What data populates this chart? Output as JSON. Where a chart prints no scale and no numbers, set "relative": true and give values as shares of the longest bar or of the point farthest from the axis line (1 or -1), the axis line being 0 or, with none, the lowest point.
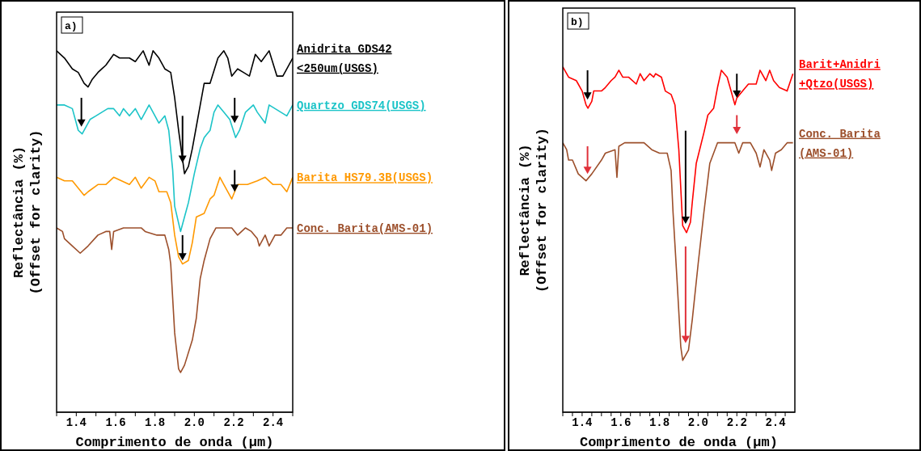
{
  "chart_data": [
    {
      "type": "line",
      "annotations": [
        "a)"
      ],
      "xlabel": "Comprimento de onda (µm)",
      "ylabel": "Reflectância (%) (Offset for clarity)",
      "relative": true,
      "xlim": [
        1.3,
        2.5
      ],
      "xticks": [
        {
          "value": 1.3,
          "label": null
        },
        1.4,
        {
          "value": 1.5,
          "label": null
        },
        1.6,
        {
          "value": 1.7,
          "label": null
        },
        1.8,
        {
          "value": 1.9,
          "label": null
        },
        {
          "value": 2.0,
          "label": "2.0"
        },
        {
          "value": 2.1,
          "label": null
        },
        2.2,
        {
          "value": 2.3,
          "label": null
        },
        2.4,
        {
          "value": 2.5,
          "label": null
        }
      ],
      "series": [
        {
          "name": "Anidrita GDS42 <250um(USGS)",
          "color": "#000000",
          "x": [
            1.3,
            1.34,
            1.38,
            1.41,
            1.44,
            1.46,
            1.48,
            1.51,
            1.53,
            1.55,
            1.59,
            1.62,
            1.64,
            1.67,
            1.7,
            1.74,
            1.77,
            1.79,
            1.82,
            1.85,
            1.88,
            1.9,
            1.92,
            1.95,
            1.97,
            1.99,
            2.01,
            2.03,
            2.05,
            2.08,
            2.12,
            2.15,
            2.17,
            2.19,
            2.22,
            2.25,
            2.28,
            2.31,
            2.34,
            2.38,
            2.42,
            2.45,
            2.5
          ],
          "values": [
            1.0,
            0.98,
            0.95,
            0.94,
            0.91,
            0.9,
            0.92,
            0.94,
            0.95,
            0.96,
            0.99,
            0.98,
            0.98,
            0.98,
            0.97,
            1.0,
            0.96,
            1.0,
            0.98,
            0.95,
            0.94,
            0.87,
            0.78,
            0.66,
            0.68,
            0.73,
            0.79,
            0.85,
            0.91,
            0.91,
            0.98,
            1.0,
            0.98,
            0.93,
            0.95,
            0.94,
            0.93,
            0.99,
            0.97,
            1.0,
            0.93,
            0.93,
            0.98
          ]
        },
        {
          "name": "Quartzo GDS74(USGS)",
          "color": "#1cc4c8",
          "x": [
            1.3,
            1.34,
            1.38,
            1.41,
            1.43,
            1.47,
            1.5,
            1.53,
            1.56,
            1.59,
            1.62,
            1.64,
            1.67,
            1.7,
            1.73,
            1.77,
            1.79,
            1.82,
            1.85,
            1.87,
            1.89,
            1.9,
            1.93,
            1.95,
            1.97,
            2.0,
            2.03,
            2.05,
            2.08,
            2.1,
            2.12,
            2.15,
            2.18,
            2.21,
            2.23,
            2.26,
            2.3,
            2.32,
            2.36,
            2.38,
            2.41,
            2.47,
            2.5
          ],
          "values": [
            0.85,
            0.85,
            0.84,
            0.78,
            0.77,
            0.81,
            0.82,
            0.83,
            0.84,
            0.84,
            0.82,
            0.84,
            0.82,
            0.84,
            0.81,
            0.85,
            0.83,
            0.8,
            0.82,
            0.78,
            0.67,
            0.57,
            0.5,
            0.54,
            0.58,
            0.66,
            0.73,
            0.76,
            0.78,
            0.83,
            0.85,
            0.83,
            0.81,
            0.76,
            0.78,
            0.83,
            0.85,
            0.83,
            0.8,
            0.85,
            0.84,
            0.82,
            0.85
          ]
        },
        {
          "name": "Barita HS79.3B(USGS)",
          "color": "#ff9900",
          "x": [
            1.3,
            1.34,
            1.38,
            1.41,
            1.44,
            1.46,
            1.51,
            1.55,
            1.59,
            1.63,
            1.67,
            1.7,
            1.73,
            1.77,
            1.8,
            1.82,
            1.86,
            1.88,
            1.9,
            1.92,
            1.94,
            1.97,
            1.99,
            2.01,
            2.05,
            2.08,
            2.1,
            2.13,
            2.15,
            2.19,
            2.22,
            2.27,
            2.32,
            2.36,
            2.4,
            2.44,
            2.47,
            2.5
          ],
          "values": [
            0.65,
            0.64,
            0.64,
            0.62,
            0.6,
            0.61,
            0.63,
            0.63,
            0.65,
            0.64,
            0.63,
            0.65,
            0.62,
            0.65,
            0.64,
            0.61,
            0.61,
            0.58,
            0.49,
            0.43,
            0.41,
            0.42,
            0.47,
            0.54,
            0.55,
            0.59,
            0.6,
            0.65,
            0.63,
            0.59,
            0.63,
            0.63,
            0.64,
            0.65,
            0.63,
            0.63,
            0.61,
            0.65
          ]
        },
        {
          "name": "Conc. Barita(AMS-01)",
          "color": "#9c4f2b",
          "x": [
            1.3,
            1.33,
            1.34,
            1.38,
            1.42,
            1.46,
            1.51,
            1.55,
            1.57,
            1.58,
            1.59,
            1.64,
            1.67,
            1.73,
            1.75,
            1.81,
            1.85,
            1.87,
            1.88,
            1.9,
            1.92,
            1.93,
            1.95,
            1.99,
            2.01,
            2.03,
            2.05,
            2.08,
            2.11,
            2.15,
            2.19,
            2.22,
            2.26,
            2.29,
            2.32,
            2.33,
            2.36,
            2.38,
            2.41,
            2.44,
            2.47,
            2.5
          ],
          "values": [
            0.51,
            0.5,
            0.48,
            0.46,
            0.44,
            0.46,
            0.49,
            0.5,
            0.5,
            0.45,
            0.5,
            0.51,
            0.51,
            0.51,
            0.5,
            0.49,
            0.49,
            0.45,
            0.41,
            0.22,
            0.12,
            0.11,
            0.13,
            0.2,
            0.26,
            0.37,
            0.42,
            0.48,
            0.51,
            0.51,
            0.51,
            0.49,
            0.51,
            0.5,
            0.48,
            0.46,
            0.49,
            0.46,
            0.49,
            0.49,
            0.51,
            0.51
          ]
        }
      ]
    },
    {
      "type": "line",
      "annotations": [
        "b)"
      ],
      "xlabel": "Comprimento de onda (µm)",
      "ylabel": "Reflectância (%) (Offset for clarity)",
      "relative": true,
      "xlim": [
        1.3,
        2.5
      ],
      "xticks": [
        {
          "value": 1.3,
          "label": null
        },
        {
          "value": 1.35,
          "label": null
        },
        1.4,
        {
          "value": 1.45,
          "label": null
        },
        {
          "value": 1.5,
          "label": null
        },
        {
          "value": 1.55,
          "label": null
        },
        1.6,
        {
          "value": 1.65,
          "label": null
        },
        {
          "value": 1.7,
          "label": null
        },
        {
          "value": 1.75,
          "label": null
        },
        1.8,
        {
          "value": 1.85,
          "label": null
        },
        {
          "value": 1.9,
          "label": null
        },
        {
          "value": 1.95,
          "label": null
        },
        {
          "value": 2.0,
          "label": "2.0"
        },
        {
          "value": 2.05,
          "label": null
        },
        {
          "value": 2.1,
          "label": null
        },
        {
          "value": 2.15,
          "label": null
        },
        2.2,
        {
          "value": 2.25,
          "label": null
        },
        {
          "value": 2.3,
          "label": null
        },
        {
          "value": 2.35,
          "label": null
        },
        2.4,
        {
          "value": 2.45,
          "label": null
        }
      ],
      "series": [
        {
          "name": "Barit+Anidri +Qtzo(USGS)",
          "color": "#ff0000",
          "x": [
            1.3,
            1.33,
            1.37,
            1.4,
            1.42,
            1.43,
            1.45,
            1.46,
            1.5,
            1.52,
            1.55,
            1.57,
            1.59,
            1.61,
            1.64,
            1.68,
            1.7,
            1.72,
            1.75,
            1.77,
            1.78,
            1.81,
            1.83,
            1.86,
            1.88,
            1.9,
            1.92,
            1.94,
            1.96,
            1.97,
            1.99,
            2.03,
            2.05,
            2.08,
            2.1,
            2.12,
            2.15,
            2.17,
            2.19,
            2.2,
            2.23,
            2.26,
            2.3,
            2.32,
            2.35,
            2.37,
            2.39,
            2.42,
            2.46,
            2.49
          ],
          "values": [
            1.0,
            0.97,
            0.96,
            0.93,
            0.89,
            0.88,
            0.9,
            0.93,
            0.93,
            0.94,
            0.96,
            0.97,
            0.99,
            0.97,
            0.97,
            0.95,
            0.98,
            0.96,
            0.98,
            0.97,
            0.98,
            0.97,
            0.93,
            0.92,
            0.89,
            0.76,
            0.54,
            0.52,
            0.55,
            0.61,
            0.72,
            0.81,
            0.86,
            0.88,
            0.94,
            0.99,
            0.97,
            0.93,
            0.89,
            0.91,
            0.93,
            0.95,
            0.95,
            0.99,
            0.96,
            0.99,
            0.96,
            0.94,
            0.93,
            0.98
          ]
        },
        {
          "name": "Conc. Barita (AMS-01)",
          "color": "#9c4f2b",
          "x": [
            1.3,
            1.32,
            1.33,
            1.35,
            1.38,
            1.42,
            1.45,
            1.5,
            1.52,
            1.57,
            1.58,
            1.59,
            1.62,
            1.68,
            1.72,
            1.76,
            1.8,
            1.84,
            1.86,
            1.87,
            1.89,
            1.91,
            1.92,
            1.95,
            1.97,
            2.0,
            2.03,
            2.06,
            2.1,
            2.15,
            2.19,
            2.21,
            2.23,
            2.27,
            2.3,
            2.32,
            2.34,
            2.37,
            2.38,
            2.4,
            2.43,
            2.46,
            2.49
          ],
          "values": [
            0.78,
            0.76,
            0.73,
            0.73,
            0.69,
            0.67,
            0.69,
            0.73,
            0.75,
            0.76,
            0.68,
            0.77,
            0.78,
            0.78,
            0.78,
            0.76,
            0.75,
            0.75,
            0.7,
            0.58,
            0.39,
            0.19,
            0.15,
            0.18,
            0.27,
            0.43,
            0.58,
            0.72,
            0.78,
            0.78,
            0.78,
            0.75,
            0.78,
            0.78,
            0.75,
            0.71,
            0.76,
            0.73,
            0.7,
            0.75,
            0.76,
            0.78,
            0.78
          ]
        }
      ]
    }
  ]
}
